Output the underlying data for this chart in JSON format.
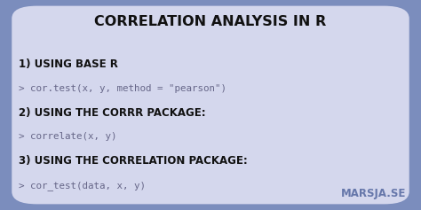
{
  "title": "CORRELATION ANALYSIS IN R",
  "title_color": "#111111",
  "bg_color": "#7b8dbd",
  "card_color": "#d4d7ed",
  "sections": [
    {
      "heading": "1) USING BASE R",
      "code": "> cor.test(x, y, method = \"pearson\")"
    },
    {
      "heading": "2) USING THE CORRR PACKAGE:",
      "code": "> correlate(x, y)"
    },
    {
      "heading": "3) USING THE CORRELATION PACKAGE:",
      "code": "> cor_test(data, x, y)"
    }
  ],
  "heading_color": "#111111",
  "code_color": "#666688",
  "watermark": "MARSJA.SE",
  "watermark_color": "#6677aa",
  "title_fontsize": 11.5,
  "heading_fontsize": 8.5,
  "code_fontsize": 7.8,
  "watermark_fontsize": 8.5
}
